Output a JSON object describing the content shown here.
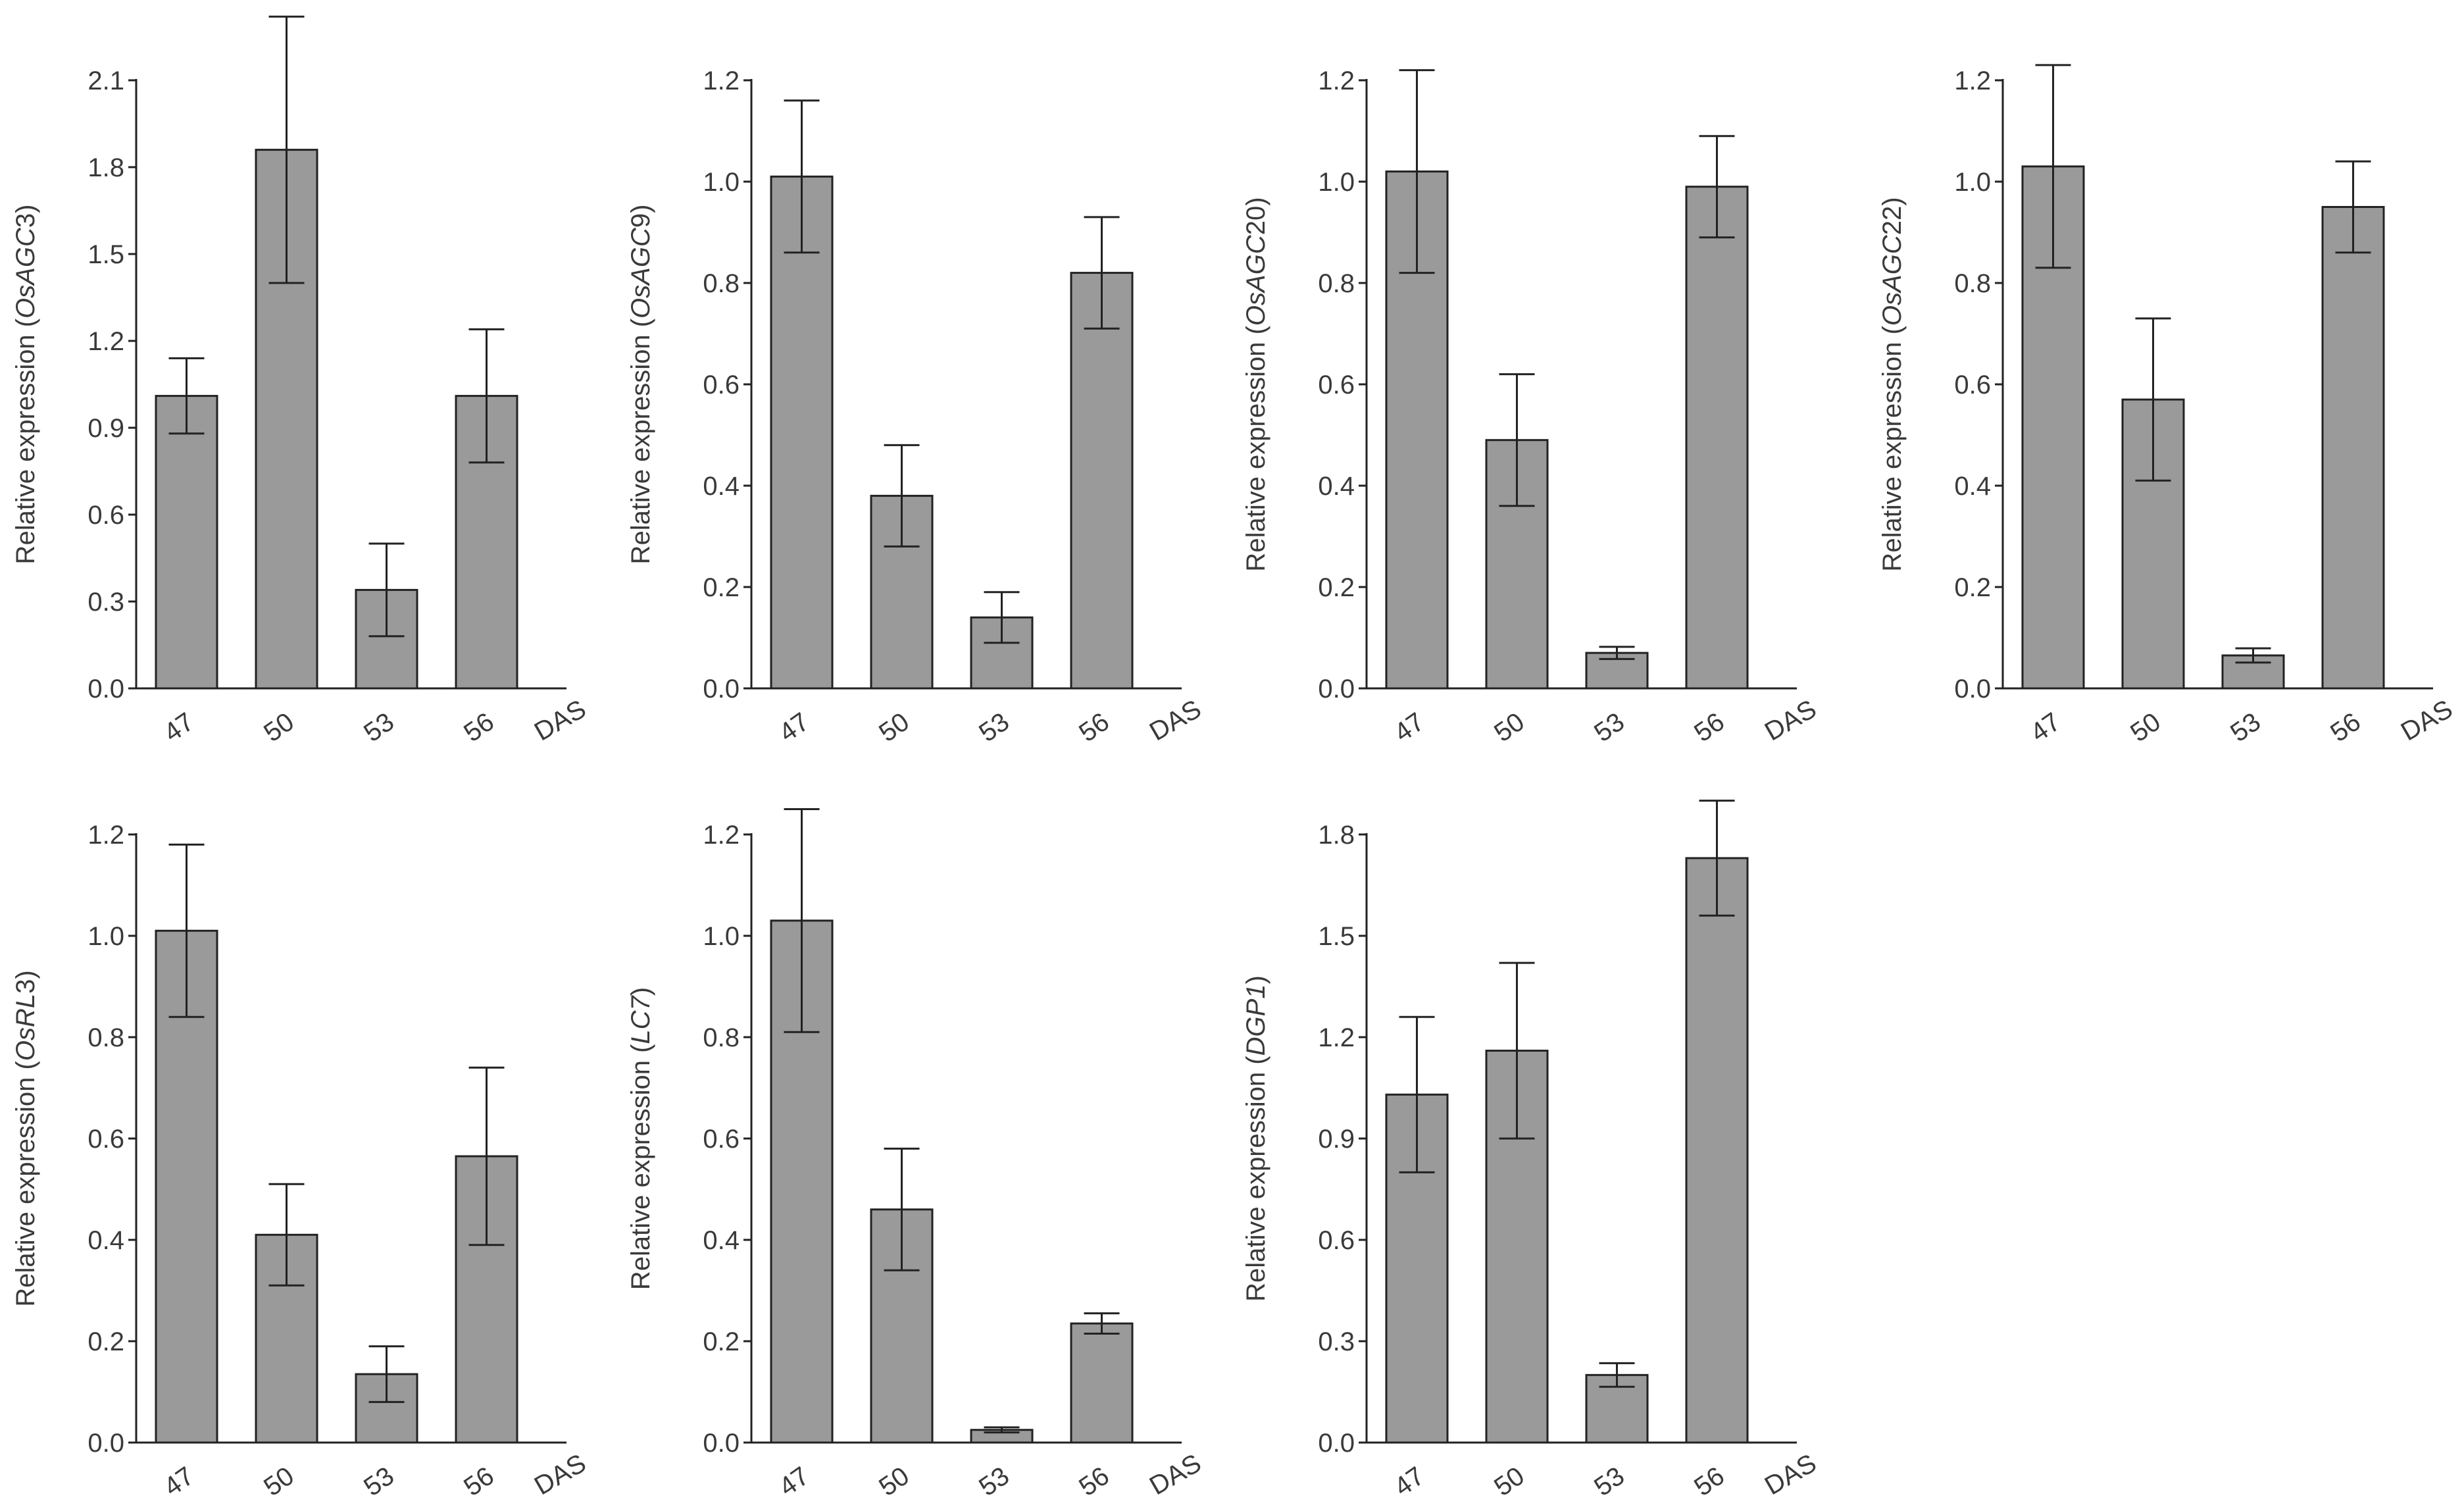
{
  "chart_data": [
    {
      "type": "bar",
      "categories": [
        "47",
        "50",
        "53",
        "56"
      ],
      "x_unit_label": "DAS",
      "ylabel_prefix": "Relative expression (",
      "ylabel_gene": "OsAGC",
      "ylabel_number": "3",
      "ylabel_suffix": ")",
      "ylim": [
        0,
        2.1
      ],
      "yticks": [
        "0.0",
        "0.3",
        "0.6",
        "0.9",
        "1.2",
        "1.5",
        "1.8",
        "2.1"
      ],
      "values": [
        1.01,
        1.86,
        0.34,
        1.01
      ],
      "errors": [
        0.13,
        0.46,
        0.16,
        0.23
      ]
    },
    {
      "type": "bar",
      "categories": [
        "47",
        "50",
        "53",
        "56"
      ],
      "x_unit_label": "DAS",
      "ylabel_prefix": "Relative expression (",
      "ylabel_gene": "OsAGC",
      "ylabel_number": "9",
      "ylabel_suffix": ")",
      "ylim": [
        0,
        1.2
      ],
      "yticks": [
        "0.0",
        "0.2",
        "0.4",
        "0.6",
        "0.8",
        "1.0",
        "1.2"
      ],
      "values": [
        1.01,
        0.38,
        0.14,
        0.82
      ],
      "errors": [
        0.15,
        0.1,
        0.05,
        0.11
      ]
    },
    {
      "type": "bar",
      "categories": [
        "47",
        "50",
        "53",
        "56"
      ],
      "x_unit_label": "DAS",
      "ylabel_prefix": "Relative expression (",
      "ylabel_gene": "OsAGC",
      "ylabel_number": "20",
      "ylabel_suffix": ")",
      "ylim": [
        0,
        1.2
      ],
      "yticks": [
        "0.0",
        "0.2",
        "0.4",
        "0.6",
        "0.8",
        "1.0",
        "1.2"
      ],
      "values": [
        1.02,
        0.49,
        0.07,
        0.99
      ],
      "errors": [
        0.2,
        0.13,
        0.012,
        0.1
      ]
    },
    {
      "type": "bar",
      "categories": [
        "47",
        "50",
        "53",
        "56"
      ],
      "x_unit_label": "DAS",
      "ylabel_prefix": "Relative expression (",
      "ylabel_gene": "OsAGC",
      "ylabel_number": "22",
      "ylabel_suffix": ")",
      "ylim": [
        0,
        1.2
      ],
      "yticks": [
        "0.0",
        "0.2",
        "0.4",
        "0.6",
        "0.8",
        "1.0",
        "1.2"
      ],
      "values": [
        1.03,
        0.57,
        0.065,
        0.95
      ],
      "errors": [
        0.2,
        0.16,
        0.014,
        0.09
      ]
    },
    {
      "type": "bar",
      "categories": [
        "47",
        "50",
        "53",
        "56"
      ],
      "x_unit_label": "DAS",
      "ylabel_prefix": "Relative expression (",
      "ylabel_gene": "OsRL",
      "ylabel_number": "3",
      "ylabel_suffix": ")",
      "ylim": [
        0,
        1.2
      ],
      "yticks": [
        "0.0",
        "0.2",
        "0.4",
        "0.6",
        "0.8",
        "1.0",
        "1.2"
      ],
      "values": [
        1.01,
        0.41,
        0.135,
        0.565
      ],
      "errors": [
        0.17,
        0.1,
        0.055,
        0.175
      ]
    },
    {
      "type": "bar",
      "categories": [
        "47",
        "50",
        "53",
        "56"
      ],
      "x_unit_label": "DAS",
      "ylabel_prefix": "Relative expression (",
      "ylabel_gene": "LC7",
      "ylabel_number": "",
      "ylabel_suffix": ")",
      "ylim": [
        0,
        1.2
      ],
      "yticks": [
        "0.0",
        "0.2",
        "0.4",
        "0.6",
        "0.8",
        "1.0",
        "1.2"
      ],
      "values": [
        1.03,
        0.46,
        0.025,
        0.235
      ],
      "errors": [
        0.22,
        0.12,
        0.005,
        0.02
      ]
    },
    {
      "type": "bar",
      "categories": [
        "47",
        "50",
        "53",
        "56"
      ],
      "x_unit_label": "DAS",
      "ylabel_prefix": "Relative expression (",
      "ylabel_gene": "DGP1",
      "ylabel_number": "",
      "ylabel_suffix": ")",
      "ylim": [
        0,
        1.8
      ],
      "yticks": [
        "0.0",
        "0.3",
        "0.6",
        "0.9",
        "1.2",
        "1.5",
        "1.8"
      ],
      "values": [
        1.03,
        1.16,
        0.2,
        1.73
      ],
      "errors": [
        0.23,
        0.26,
        0.035,
        0.17
      ]
    }
  ]
}
